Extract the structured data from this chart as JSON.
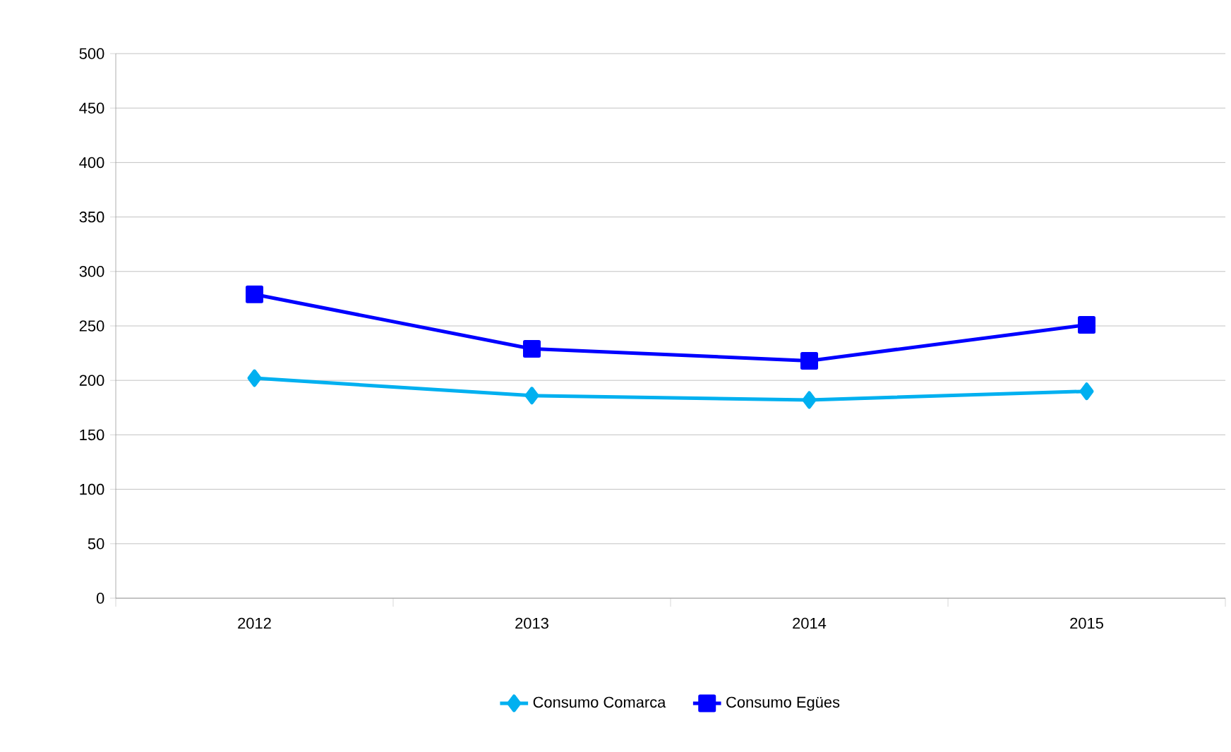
{
  "chart_data": {
    "type": "line",
    "categories": [
      "2012",
      "2013",
      "2014",
      "2015"
    ],
    "series": [
      {
        "name": "Consumo Comarca",
        "color": "#00b0f0",
        "marker": "diamond",
        "values": [
          202,
          186,
          182,
          190
        ]
      },
      {
        "name": "Consumo Egües",
        "color": "#0000ff",
        "marker": "square",
        "values": [
          279,
          229,
          218,
          251
        ]
      }
    ],
    "ylim": [
      0,
      500
    ],
    "yticks": [
      0,
      50,
      100,
      150,
      200,
      250,
      300,
      350,
      400,
      450,
      500
    ],
    "grid": "y",
    "legend": "bottom"
  }
}
